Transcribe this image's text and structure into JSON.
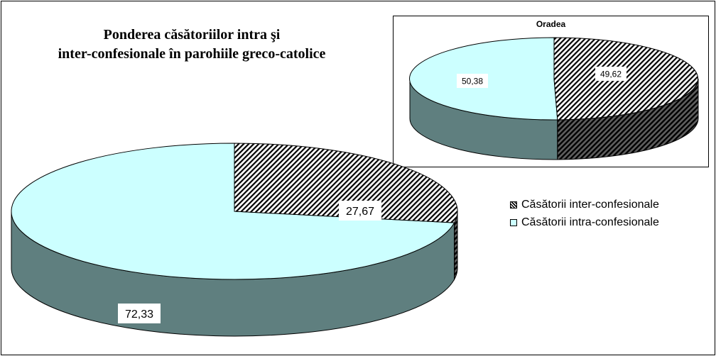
{
  "chart_data": [
    {
      "type": "pie",
      "title": "Ponderea căsătoriilor intra şi inter-confesionale în parohiile greco-catolice",
      "title_lines": [
        "Ponderea căsătoriilor intra şi",
        "inter-confesionale în parohiile greco-catolice"
      ],
      "categories": [
        "Căsătorii inter-confesionale",
        "Căsătorii intra-confesionale"
      ],
      "values": [
        27.67,
        72.33
      ],
      "value_labels": [
        "27,67",
        "72,33"
      ],
      "style": "3d"
    },
    {
      "type": "pie",
      "title": "Oradea",
      "categories": [
        "Căsătorii inter-confesionale",
        "Căsătorii intra-confesionale"
      ],
      "values": [
        49.62,
        50.38
      ],
      "value_labels": [
        "49,62",
        "50,38"
      ],
      "style": "3d"
    }
  ],
  "legend": {
    "items": [
      "Căsătorii inter-confesionale",
      "Căsătorii intra-confesionale"
    ],
    "placement": "right"
  },
  "colors": {
    "inter_hatch": "#000000",
    "intra_top": "#ccffff",
    "intra_side": "#5f7f7f",
    "inter_side_dark": "#202020"
  }
}
